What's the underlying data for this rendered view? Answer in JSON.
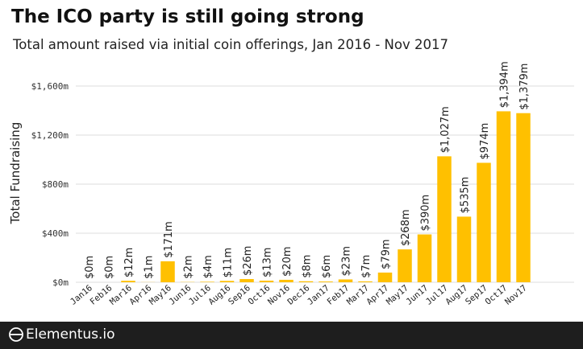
{
  "header": {
    "title": "The ICO party is still going strong",
    "subtitle": "Total amount raised via initial coin offerings, Jan 2016 - Nov 2017"
  },
  "footer": {
    "brand": "Elementus.io"
  },
  "colors": {
    "bar": "#FFC000",
    "grid": "#DDDDDD",
    "footer_bg": "#1E1E1E"
  },
  "chart_data": {
    "type": "bar",
    "ylabel": "Total Fundraising",
    "xlabel": "",
    "ylim": [
      0,
      1600
    ],
    "yticks": [
      0,
      400,
      800,
      1200,
      1600
    ],
    "ytick_labels": [
      "$0m",
      "$400m",
      "$800m",
      "$1,200m",
      "$1,600m"
    ],
    "grid": true,
    "categories": [
      "Jan16",
      "Feb16",
      "Mar16",
      "Apr16",
      "May16",
      "Jun16",
      "Jul16",
      "Aug16",
      "Sep16",
      "Oct16",
      "Nov16",
      "Dec16",
      "Jan17",
      "Feb17",
      "Mar17",
      "Apr17",
      "May17",
      "Jun17",
      "Jul17",
      "Aug17",
      "Sep17",
      "Oct17",
      "Nov17"
    ],
    "values": [
      0,
      0,
      12,
      1,
      171,
      2,
      4,
      11,
      26,
      13,
      20,
      8,
      6,
      23,
      7,
      79,
      268,
      390,
      1027,
      535,
      974,
      1394,
      1379
    ],
    "data_labels": [
      "$0m",
      "$0m",
      "$12m",
      "$1m",
      "$171m",
      "$2m",
      "$4m",
      "$11m",
      "$26m",
      "$13m",
      "$20m",
      "$8m",
      "$6m",
      "$23m",
      "$7m",
      "$79m",
      "$268m",
      "$390m",
      "$1,027m",
      "$535m",
      "$974m",
      "$1,394m",
      "$1,379m"
    ]
  }
}
